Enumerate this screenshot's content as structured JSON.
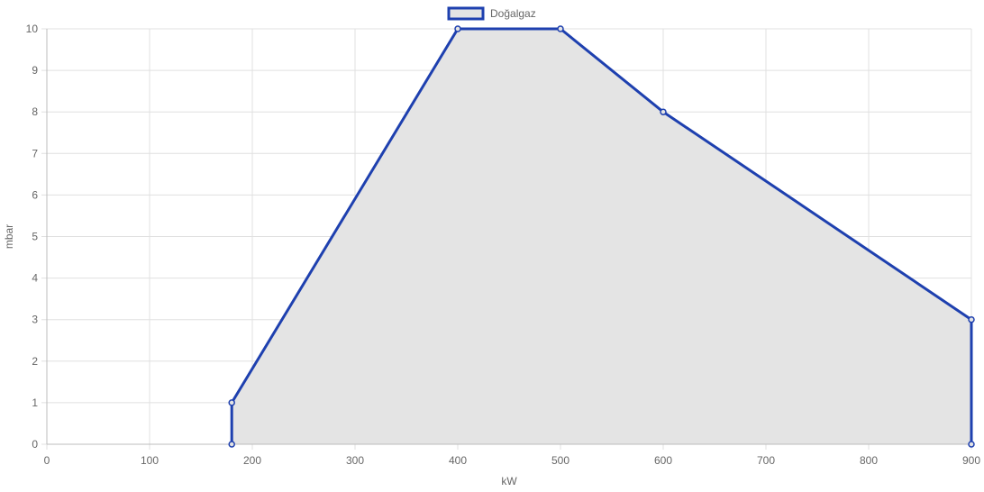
{
  "chart_data": {
    "type": "area",
    "title": "",
    "xlabel": "kW",
    "ylabel": "mbar",
    "xlim": [
      0,
      900
    ],
    "ylim": [
      0,
      10
    ],
    "x_ticks": [
      0,
      100,
      200,
      300,
      400,
      500,
      600,
      700,
      800,
      900
    ],
    "y_ticks": [
      0,
      1,
      2,
      3,
      4,
      5,
      6,
      7,
      8,
      9,
      10
    ],
    "grid": true,
    "legend_position": "top-center",
    "series": [
      {
        "name": "Doğalgaz",
        "color": "#1e40af",
        "fill_color": "#e4e4e4",
        "points": [
          {
            "x": 180,
            "y": 0
          },
          {
            "x": 180,
            "y": 1
          },
          {
            "x": 400,
            "y": 10
          },
          {
            "x": 500,
            "y": 10
          },
          {
            "x": 600,
            "y": 8
          },
          {
            "x": 900,
            "y": 3
          },
          {
            "x": 900,
            "y": 0
          }
        ]
      }
    ]
  }
}
